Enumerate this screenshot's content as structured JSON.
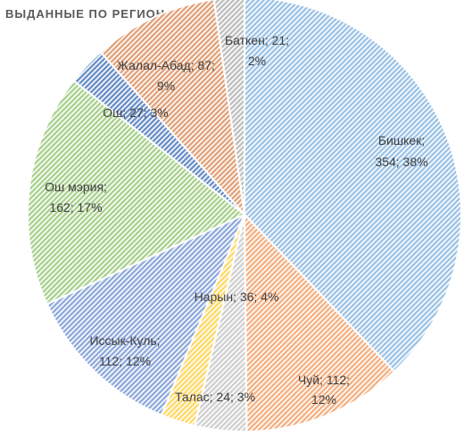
{
  "chart_data": {
    "type": "pie",
    "title": "ВЫДАННЫЕ ПО РЕГИОНАМ",
    "slices": [
      {
        "name": "Бишкек",
        "value": 354,
        "percent": "38%",
        "label1": "Бишкек;",
        "label2": "354; 38%",
        "color": "#9dc3e6",
        "stroke": "#5b9bd5"
      },
      {
        "name": "Чуй",
        "value": 112,
        "percent": "12%",
        "label1": "Чуй; 112;",
        "label2": "12%",
        "color": "#f4b183",
        "stroke": "#ed7d31"
      },
      {
        "name": "Нарын",
        "value": 36,
        "percent": "4%",
        "label1": "Нарын; 36; 4%",
        "label2": "",
        "color": "#d0d0d0",
        "stroke": "#a5a5a5"
      },
      {
        "name": "Талас",
        "value": 24,
        "percent": "3%",
        "label1": "Талас; 24; 3%",
        "label2": "",
        "color": "#ffd966",
        "stroke": "#ffc000"
      },
      {
        "name": "Иссык-Куль",
        "value": 112,
        "percent": "12%",
        "label1": "Иссык-Куль;",
        "label2": "112; 12%",
        "color": "#8faadc",
        "stroke": "#4472c4"
      },
      {
        "name": "Ош мэрия",
        "value": 162,
        "percent": "17%",
        "label1": "Ош мэрия;",
        "label2": "162; 17%",
        "color": "#a9d18e",
        "stroke": "#70ad47"
      },
      {
        "name": "Ош",
        "value": 27,
        "percent": "3%",
        "label1": "Ош; 27; 3%",
        "label2": "",
        "color": "#6a8fc8",
        "stroke": "#2f5597"
      },
      {
        "name": "Жалал-Абад",
        "value": 87,
        "percent": "9%",
        "label1": "Жалал-Абад; 87;",
        "label2": "9%",
        "color": "#e2a27a",
        "stroke": "#c55a11"
      },
      {
        "name": "Баткен",
        "value": 21,
        "percent": "2%",
        "label1": "Баткен; 21;",
        "label2": "2%",
        "color": "#bfbfbf",
        "stroke": "#7f7f7f"
      }
    ]
  }
}
